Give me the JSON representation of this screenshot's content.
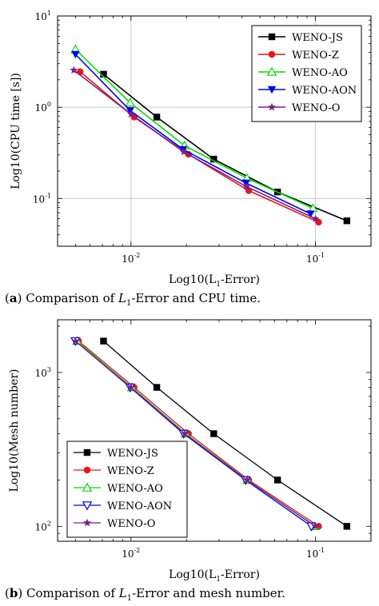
{
  "captions": {
    "a": {
      "label": "a",
      "pre": "Comparison of ",
      "L": "L",
      "sub": "1",
      "post": "-Error and CPU time."
    },
    "b": {
      "label": "b",
      "pre": "Comparison of ",
      "L": "L",
      "sub": "1",
      "post": "-Error and mesh number."
    }
  },
  "chart_data": [
    {
      "type": "line",
      "xscale": "log",
      "yscale": "log",
      "xlabel": "Log10(L1-Error)",
      "ylabel": "Log10(CPU time [s])",
      "xlim": [
        0.004,
        0.2
      ],
      "ylim": [
        0.03,
        10
      ],
      "xticks": [
        {
          "v": 0.01,
          "b": "10",
          "e": "-2"
        },
        {
          "v": 0.1,
          "b": "10",
          "e": "-1"
        }
      ],
      "yticks": [
        {
          "v": 0.1,
          "b": "10",
          "e": "-1"
        },
        {
          "v": 1,
          "b": "10",
          "e": "0"
        },
        {
          "v": 10,
          "b": "10",
          "e": "1"
        }
      ],
      "grid": true,
      "legend": "top-right",
      "series": [
        {
          "name": "WENO-JS",
          "color": "#000000",
          "marker": "square",
          "x": [
            0.0071,
            0.0138,
            0.0281,
            0.0623,
            0.148
          ],
          "y": [
            2.3,
            0.78,
            0.27,
            0.118,
            0.057
          ]
        },
        {
          "name": "WENO-Z",
          "color": "#e8141c",
          "marker": "circle",
          "x": [
            0.0053,
            0.0104,
            0.0205,
            0.0435,
            0.104
          ],
          "y": [
            2.45,
            0.78,
            0.305,
            0.122,
            0.055
          ]
        },
        {
          "name": "WENO-AO",
          "color": "#00dd00",
          "marker": "triangle-up-open",
          "x": [
            0.005,
            0.0099,
            0.0195,
            0.0425,
            0.097
          ],
          "y": [
            4.3,
            1.12,
            0.38,
            0.167,
            0.078
          ]
        },
        {
          "name": "WENO-AON",
          "color": "#0000ee",
          "marker": "triangle-down",
          "x": [
            0.005,
            0.0099,
            0.0192,
            0.042,
            0.094
          ],
          "y": [
            3.8,
            0.92,
            0.345,
            0.148,
            0.068
          ]
        },
        {
          "name": "WENO-O",
          "color": "#7b1f8a",
          "marker": "star",
          "x": [
            0.0049,
            0.01,
            0.0193,
            0.0423,
            0.1
          ],
          "y": [
            2.55,
            0.84,
            0.325,
            0.135,
            0.06
          ]
        }
      ]
    },
    {
      "type": "line",
      "xscale": "log",
      "yscale": "log",
      "xlabel": "Log10(L1-Error)",
      "ylabel": "Log10(Mesh number)",
      "xlim": [
        0.004,
        0.2
      ],
      "ylim": [
        80,
        2200
      ],
      "xticks": [
        {
          "v": 0.01,
          "b": "10",
          "e": "-2"
        },
        {
          "v": 0.1,
          "b": "10",
          "e": "-1"
        }
      ],
      "yticks": [
        {
          "v": 100,
          "b": "10",
          "e": "2"
        },
        {
          "v": 1000,
          "b": "10",
          "e": "3"
        }
      ],
      "grid": false,
      "legend": "bottom-left",
      "series": [
        {
          "name": "WENO-JS",
          "color": "#000000",
          "marker": "square",
          "x": [
            0.0071,
            0.0138,
            0.0281,
            0.0623,
            0.148
          ],
          "y": [
            1600,
            800,
            400,
            200,
            100
          ]
        },
        {
          "name": "WENO-Z",
          "color": "#e8141c",
          "marker": "circle",
          "x": [
            0.0052,
            0.0104,
            0.0205,
            0.0435,
            0.104
          ],
          "y": [
            1600,
            800,
            400,
            200,
            100
          ]
        },
        {
          "name": "WENO-AO",
          "color": "#00dd00",
          "marker": "triangle-up-open",
          "x": [
            0.0051,
            0.0101,
            0.0198,
            0.0428,
            0.099
          ],
          "y": [
            1600,
            800,
            400,
            200,
            100
          ]
        },
        {
          "name": "WENO-AON",
          "color": "#0000ee",
          "marker": "triangle-down-open",
          "x": [
            0.005,
            0.0099,
            0.0193,
            0.0418,
            0.095
          ],
          "y": [
            1600,
            800,
            400,
            200,
            100
          ]
        },
        {
          "name": "WENO-O",
          "color": "#7b1f8a",
          "marker": "star",
          "x": [
            0.005,
            0.01,
            0.0196,
            0.0425,
            0.1
          ],
          "y": [
            1600,
            800,
            400,
            200,
            100
          ]
        }
      ]
    }
  ]
}
